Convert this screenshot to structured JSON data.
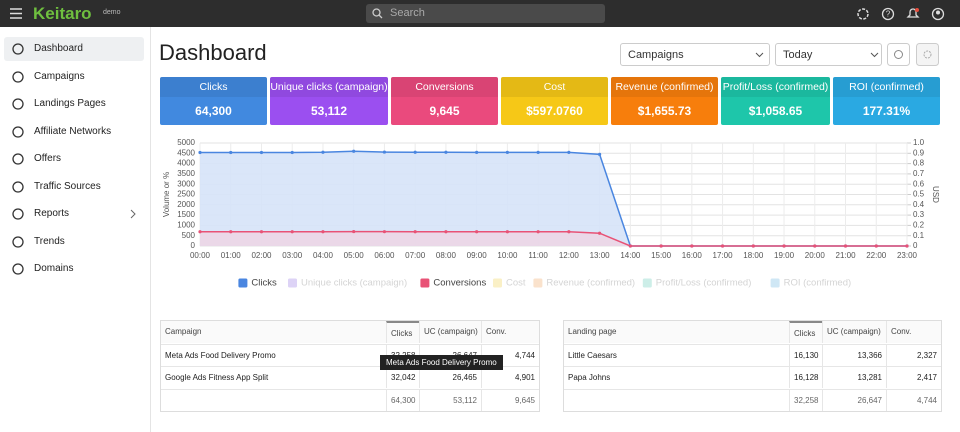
{
  "topbar": {
    "logo": "Keitaro",
    "badge": "demo",
    "search_placeholder": "Search"
  },
  "sidebar": {
    "items": [
      "Dashboard",
      "Campaigns",
      "Landings Pages",
      "Affiliate Networks",
      "Offers",
      "Traffic Sources",
      "Reports",
      "Trends",
      "Domains"
    ]
  },
  "header": {
    "title": "Dashboard",
    "filters": [
      "Campaigns",
      "Today"
    ]
  },
  "cards": [
    {
      "label": "Clicks",
      "value": "64,300",
      "color": "#4189df"
    },
    {
      "label": "Unique clicks (campaign)",
      "value": "53,112",
      "color": "#9b4ff0"
    },
    {
      "label": "Conversions",
      "value": "9,645",
      "color": "#ea4a7d"
    },
    {
      "label": "Cost",
      "value": "$597.0760",
      "color": "#f6c817"
    },
    {
      "label": "Revenue (confirmed)",
      "value": "$1,655.73",
      "color": "#f77e0c"
    },
    {
      "label": "Profit/Loss (confirmed)",
      "value": "$1,058.65",
      "color": "#1ec6aa"
    },
    {
      "label": "ROI (confirmed)",
      "value": "177.31%",
      "color": "#2aa9e2"
    }
  ],
  "chart_data": {
    "type": "line",
    "y_label": "Volume or %",
    "y2_label": "USD",
    "categories": [
      "00:00",
      "01:00",
      "02:00",
      "03:00",
      "04:00",
      "05:00",
      "06:00",
      "07:00",
      "08:00",
      "09:00",
      "10:00",
      "11:00",
      "12:00",
      "13:00",
      "14:00",
      "15:00",
      "16:00",
      "17:00",
      "18:00",
      "19:00",
      "20:00",
      "21:00",
      "22:00",
      "23:00"
    ],
    "ylim": [
      0,
      5000
    ],
    "yticks": [
      0,
      500,
      1000,
      1500,
      2000,
      2500,
      3000,
      3500,
      4000,
      4500,
      5000
    ],
    "y2lim": [
      0,
      1
    ],
    "y2ticks": [
      0,
      0.1,
      0.2,
      0.3,
      0.4,
      0.5,
      0.6,
      0.7,
      0.8,
      0.9,
      {
        "value": 1,
        "label": "1.0"
      }
    ],
    "grid": true,
    "series": [
      {
        "name": "Clicks",
        "color": "#4a86e0",
        "fill": "#d6e3f8",
        "values": [
          4540,
          4540,
          4540,
          4540,
          4550,
          4600,
          4560,
          4550,
          4550,
          4545,
          4545,
          4545,
          4545,
          4450,
          0,
          0,
          0,
          0,
          0,
          0,
          0,
          0,
          0,
          0
        ]
      },
      {
        "name": "Unique clicks (campaign)",
        "color": "#ddd3f6",
        "hidden": true
      },
      {
        "name": "Conversions",
        "color": "#e85276",
        "fill": "#ecd6e6",
        "values": [
          690,
          690,
          690,
          690,
          690,
          700,
          695,
          690,
          690,
          690,
          690,
          690,
          690,
          620,
          0,
          0,
          0,
          0,
          0,
          0,
          0,
          0,
          0,
          0
        ]
      },
      {
        "name": "Cost",
        "color": "#faf0c6",
        "hidden": true
      },
      {
        "name": "Revenue (confirmed)",
        "color": "#fae2cc",
        "hidden": true
      },
      {
        "name": "Profit/Loss (confirmed)",
        "color": "#cdeee8",
        "hidden": true
      },
      {
        "name": "ROI (confirmed)",
        "color": "#cfe7f5",
        "hidden": true
      }
    ]
  },
  "tables": [
    {
      "columns": [
        "Campaign",
        "Clicks",
        "UC (campaign)",
        "Conv."
      ],
      "rows": [
        [
          "Meta Ads Food Delivery Promo",
          "32,258",
          "26,647",
          "4,744"
        ],
        [
          "Google Ads Fitness App Split",
          "32,042",
          "26,465",
          "4,901"
        ]
      ],
      "totals": [
        "64,300",
        "53,112",
        "9,645"
      ]
    },
    {
      "columns": [
        "Landing page",
        "Clicks",
        "UC (campaign)",
        "Conv."
      ],
      "rows": [
        [
          "Little Caesars",
          "16,130",
          "13,366",
          "2,327"
        ],
        [
          "Papa Johns",
          "16,128",
          "13,281",
          "2,417"
        ]
      ],
      "totals": [
        "32,258",
        "26,647",
        "4,744"
      ]
    }
  ],
  "tooltip": "Meta Ads Food Delivery Promo"
}
